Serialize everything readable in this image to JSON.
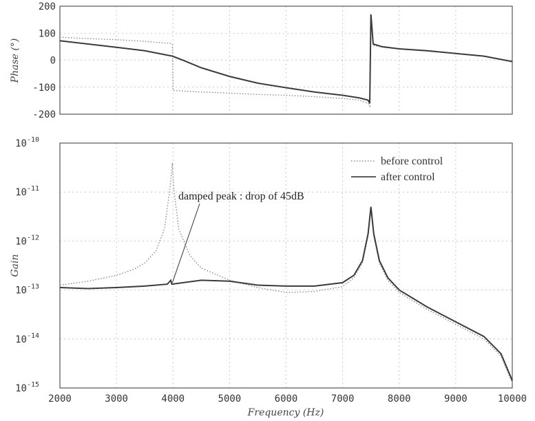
{
  "chart_data": [
    {
      "type": "line",
      "ylabel": "Phase (°)",
      "ylim": [
        -200,
        200
      ],
      "xlim": [
        2000,
        10000
      ],
      "y_ticks": [
        "200",
        "100",
        "0",
        "-100",
        "-200"
      ],
      "x_ticks": [],
      "grid": true,
      "series": [
        {
          "id": "before",
          "style": "dotted",
          "points": [
            [
              2000,
              85
            ],
            [
              2500,
              80
            ],
            [
              3000,
              76
            ],
            [
              3500,
              70
            ],
            [
              3950,
              62
            ],
            [
              3990,
              60
            ],
            [
              4000,
              -112
            ],
            [
              4500,
              -118
            ],
            [
              5000,
              -122
            ],
            [
              5500,
              -127
            ],
            [
              6000,
              -130
            ],
            [
              6500,
              -135
            ],
            [
              7000,
              -142
            ],
            [
              7300,
              -148
            ],
            [
              7450,
              -160
            ],
            [
              7480,
              -170
            ],
            [
              7500,
              165
            ],
            [
              7540,
              55
            ],
            [
              7700,
              48
            ],
            [
              8000,
              42
            ],
            [
              8500,
              33
            ],
            [
              9000,
              25
            ],
            [
              9500,
              15
            ],
            [
              10000,
              -5
            ]
          ]
        },
        {
          "id": "after",
          "style": "solid",
          "points": [
            [
              2000,
              72
            ],
            [
              2500,
              60
            ],
            [
              3000,
              48
            ],
            [
              3500,
              35
            ],
            [
              3990,
              15
            ],
            [
              4200,
              -2
            ],
            [
              4500,
              -28
            ],
            [
              5000,
              -60
            ],
            [
              5500,
              -85
            ],
            [
              6000,
              -102
            ],
            [
              6500,
              -118
            ],
            [
              7000,
              -130
            ],
            [
              7300,
              -140
            ],
            [
              7450,
              -148
            ],
            [
              7480,
              -160
            ],
            [
              7500,
              170
            ],
            [
              7540,
              60
            ],
            [
              7700,
              50
            ],
            [
              8000,
              42
            ],
            [
              8500,
              35
            ],
            [
              9000,
              25
            ],
            [
              9500,
              15
            ],
            [
              10000,
              -5
            ]
          ]
        }
      ]
    },
    {
      "type": "line",
      "ylabel": "Gain",
      "xlabel": "Frequency (Hz)",
      "y_scale": "log",
      "ylim_exp": [
        -15,
        -10
      ],
      "xlim": [
        2000,
        10000
      ],
      "x_ticks": [
        "2000",
        "3000",
        "4000",
        "5000",
        "6000",
        "7000",
        "8000",
        "9000",
        "10000"
      ],
      "y_tick_base": "10",
      "y_tick_exps": [
        "-10",
        "-11",
        "-12",
        "-13",
        "-14",
        "-15"
      ],
      "grid": true,
      "legend_position": "top-right",
      "series": [
        {
          "id": "before",
          "name": "before control",
          "style": "dotted",
          "points": [
            [
              2000,
              -12.9
            ],
            [
              2500,
              -12.82
            ],
            [
              3000,
              -12.7
            ],
            [
              3300,
              -12.58
            ],
            [
              3500,
              -12.45
            ],
            [
              3700,
              -12.2
            ],
            [
              3850,
              -11.75
            ],
            [
              3950,
              -10.9
            ],
            [
              3990,
              -10.4
            ],
            [
              4010,
              -10.9
            ],
            [
              4100,
              -11.75
            ],
            [
              4300,
              -12.3
            ],
            [
              4500,
              -12.55
            ],
            [
              5000,
              -12.8
            ],
            [
              5500,
              -12.95
            ],
            [
              6000,
              -13.05
            ],
            [
              6500,
              -13.03
            ],
            [
              7000,
              -12.93
            ],
            [
              7200,
              -12.75
            ],
            [
              7350,
              -12.45
            ],
            [
              7450,
              -11.9
            ],
            [
              7500,
              -11.35
            ],
            [
              7550,
              -11.9
            ],
            [
              7650,
              -12.45
            ],
            [
              7800,
              -12.8
            ],
            [
              8000,
              -13.05
            ],
            [
              8500,
              -13.4
            ],
            [
              9000,
              -13.7
            ],
            [
              9500,
              -14.0
            ],
            [
              9800,
              -14.35
            ],
            [
              10000,
              -14.9
            ]
          ]
        },
        {
          "id": "after",
          "name": "after control",
          "style": "solid",
          "points": [
            [
              2000,
              -12.95
            ],
            [
              2500,
              -12.97
            ],
            [
              3000,
              -12.95
            ],
            [
              3500,
              -12.92
            ],
            [
              3900,
              -12.88
            ],
            [
              3960,
              -12.8
            ],
            [
              3980,
              -12.88
            ],
            [
              4500,
              -12.8
            ],
            [
              5000,
              -12.82
            ],
            [
              5500,
              -12.9
            ],
            [
              6000,
              -12.92
            ],
            [
              6500,
              -12.92
            ],
            [
              7000,
              -12.85
            ],
            [
              7200,
              -12.7
            ],
            [
              7350,
              -12.4
            ],
            [
              7450,
              -11.85
            ],
            [
              7500,
              -11.3
            ],
            [
              7550,
              -11.85
            ],
            [
              7650,
              -12.4
            ],
            [
              7800,
              -12.75
            ],
            [
              8000,
              -13.0
            ],
            [
              8500,
              -13.35
            ],
            [
              9000,
              -13.65
            ],
            [
              9500,
              -13.95
            ],
            [
              9800,
              -14.3
            ],
            [
              10000,
              -14.85
            ]
          ]
        }
      ],
      "annotation": {
        "text": "damped peak : drop of 45dB",
        "target": [
          3990,
          -12.85
        ]
      }
    }
  ]
}
